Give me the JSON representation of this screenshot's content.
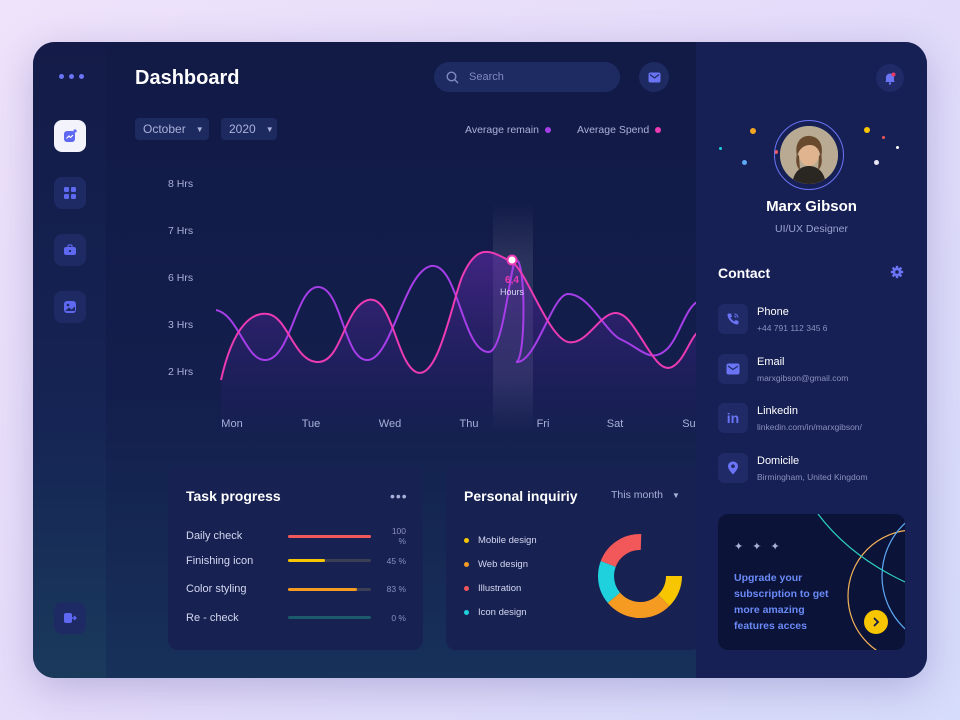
{
  "header": {
    "title": "Dashboard",
    "search_placeholder": "Search"
  },
  "filters": {
    "month": "October",
    "year": "2020"
  },
  "legend": {
    "remain": {
      "label": "Average remain",
      "color": "#a63ee8"
    },
    "spend": {
      "label": "Average  Spend",
      "color": "#ec3bb4"
    }
  },
  "chart_data": {
    "type": "line",
    "categories": [
      "Mon",
      "Tue",
      "Wed",
      "Thu",
      "Fri",
      "Sat",
      "Sun"
    ],
    "y_ticks": [
      "8 Hrs",
      "7 Hrs",
      "6 Hrs",
      "3 Hrs",
      "2 Hrs"
    ],
    "highlight": {
      "value": "6,4",
      "unit": "Hours",
      "category_index": 3.55
    }
  },
  "task_progress": {
    "title": "Task progress",
    "items": [
      {
        "label": "Daily check",
        "pct_label": "100 %",
        "value": 1.0,
        "color": "#f2575a"
      },
      {
        "label": "Finishing icon",
        "pct_label": "45 %",
        "value": 0.45,
        "color": "#f7c600"
      },
      {
        "label": "Color styling",
        "pct_label": "83 %",
        "value": 0.83,
        "color": "#f59b21"
      },
      {
        "label": "Re - check",
        "pct_label": "0 %",
        "value": 0.0,
        "color": "#1fb5c5"
      }
    ]
  },
  "inquiry": {
    "title": "Personal inquiriy",
    "period": "This month",
    "items": [
      {
        "label": "Mobile design",
        "color": "#f7c600"
      },
      {
        "label": "Web design",
        "color": "#f59b21"
      },
      {
        "label": "Illustration",
        "color": "#f2575a"
      },
      {
        "label": "Icon design",
        "color": "#1fd1dc"
      }
    ]
  },
  "profile": {
    "name": "Marx Gibson",
    "role": "UI/UX Designer"
  },
  "contact": {
    "title": "Contact",
    "items": [
      {
        "title": "Phone",
        "value": "+44 791 112 345 6"
      },
      {
        "title": "Email",
        "value": "marxgibson@gmail.com"
      },
      {
        "title": "Linkedin",
        "value": "linkedin.com/in/marxgibson/"
      },
      {
        "title": "Domicile",
        "value": "Birmingham, United Kingdom"
      }
    ]
  },
  "promo": {
    "stars": "✦ ✦ ✦",
    "text": "Upgrade your subscription to get more amazing features acces"
  }
}
